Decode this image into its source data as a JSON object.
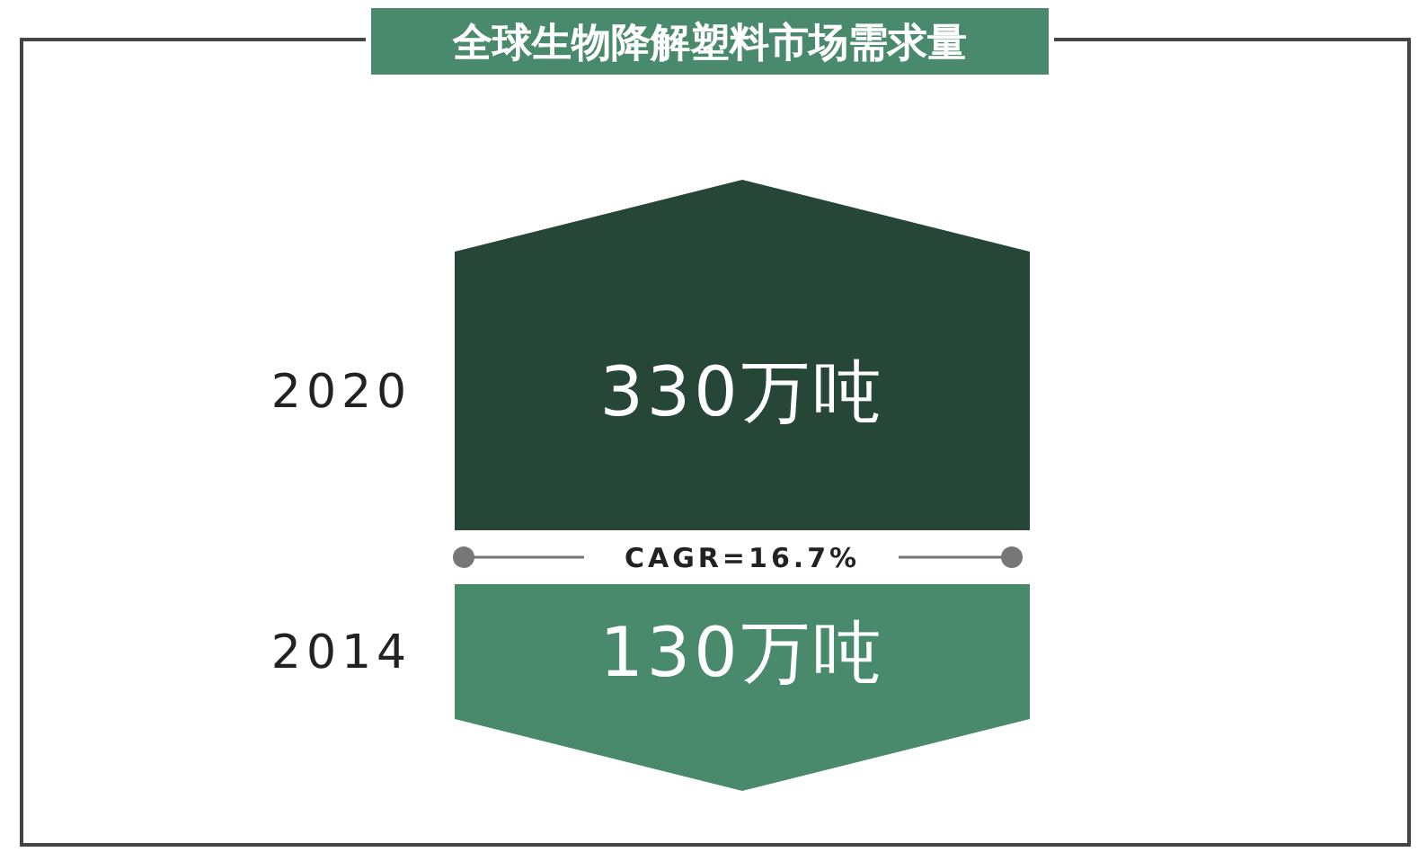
{
  "chart_data": {
    "type": "other",
    "title": "全球生物降解塑料市场需求量",
    "categories": [
      "2020",
      "2014"
    ],
    "values": [
      330,
      130
    ],
    "value_labels": [
      "330万吨",
      "130万吨"
    ],
    "colors": [
      "#264637",
      "#4a8a6c"
    ],
    "annotations": [
      "CAGR=16.7%"
    ]
  }
}
